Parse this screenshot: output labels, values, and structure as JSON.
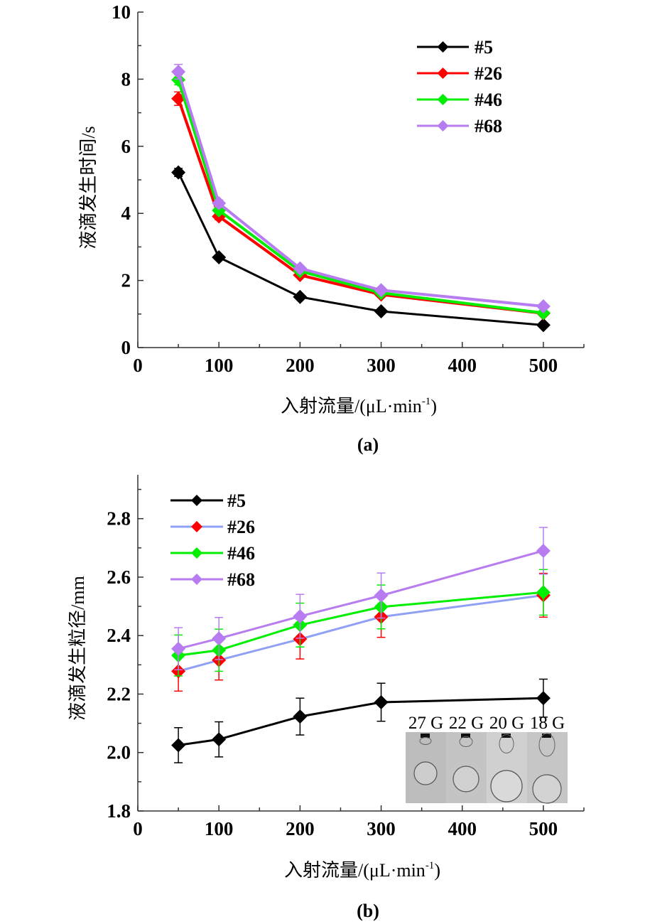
{
  "chart_data": [
    {
      "type": "line",
      "panel_label": "(a)",
      "title": "",
      "xlabel": "入射流量/(μL·min",
      "xlabel_sup": "-1",
      "xlabel_close": ")",
      "ylabel": "液滴发生时间/s",
      "xlim": [
        0,
        550
      ],
      "ylim": [
        0,
        10
      ],
      "xticks": [
        0,
        100,
        200,
        300,
        400,
        500
      ],
      "xtick_labels": [
        "0",
        "100",
        "200",
        "300",
        "400",
        "500"
      ],
      "yticks": [
        0,
        2,
        4,
        6,
        8,
        10
      ],
      "ytick_labels": [
        "0",
        "2",
        "4",
        "6",
        "8",
        "10"
      ],
      "grid": false,
      "legend_position": "top-right",
      "x": [
        50,
        100,
        200,
        300,
        500
      ],
      "series": [
        {
          "name": "#5",
          "line_color": "#000000",
          "marker_color": "#000000",
          "values": [
            5.22,
            2.69,
            1.51,
            1.08,
            0.67
          ],
          "errors": [
            0.12,
            0.05,
            0.04,
            0.03,
            0.03
          ]
        },
        {
          "name": "#26",
          "line_color": "#ff0000",
          "marker_color": "#ff0000",
          "values": [
            7.42,
            3.91,
            2.16,
            1.58,
            1.02
          ],
          "errors": [
            0.2,
            0.1,
            0.06,
            0.04,
            0.04
          ]
        },
        {
          "name": "#46",
          "line_color": "#00ee00",
          "marker_color": "#00ee00",
          "values": [
            7.98,
            4.09,
            2.28,
            1.63,
            1.03
          ],
          "errors": [
            0.15,
            0.08,
            0.05,
            0.04,
            0.04
          ]
        },
        {
          "name": "#68",
          "line_color": "#b77cf0",
          "marker_color": "#b77cf0",
          "values": [
            8.22,
            4.3,
            2.36,
            1.71,
            1.23
          ],
          "errors": [
            0.22,
            0.1,
            0.06,
            0.04,
            0.04
          ]
        }
      ]
    },
    {
      "type": "line",
      "panel_label": "(b)",
      "title": "",
      "xlabel": "入射流量/(μL·min",
      "xlabel_sup": "-1",
      "xlabel_close": ")",
      "ylabel": "液滴发生粒径/mm",
      "xlim": [
        0,
        550
      ],
      "ylim": [
        1.8,
        2.95
      ],
      "xticks": [
        0,
        100,
        200,
        300,
        400,
        500
      ],
      "xtick_labels": [
        "0",
        "100",
        "200",
        "300",
        "400",
        "500"
      ],
      "yticks": [
        1.8,
        2.0,
        2.2,
        2.4,
        2.6,
        2.8
      ],
      "ytick_labels": [
        "1.8",
        "2.0",
        "2.2",
        "2.4",
        "2.6",
        "2.8"
      ],
      "grid": false,
      "legend_position": "top-left",
      "x": [
        50,
        100,
        200,
        300,
        500
      ],
      "series": [
        {
          "name": "#5",
          "line_color": "#000000",
          "marker_color": "#000000",
          "values": [
            2.025,
            2.045,
            2.123,
            2.172,
            2.186
          ],
          "errors": [
            0.06,
            0.06,
            0.063,
            0.065,
            0.065
          ]
        },
        {
          "name": "#26",
          "line_color": "#8fa0f5",
          "marker_color": "#ff0000",
          "values": [
            2.278,
            2.316,
            2.388,
            2.464,
            2.538
          ],
          "errors": [
            0.068,
            0.068,
            0.068,
            0.07,
            0.075
          ]
        },
        {
          "name": "#46",
          "line_color": "#00ee00",
          "marker_color": "#00ee00",
          "values": [
            2.332,
            2.35,
            2.436,
            2.498,
            2.548
          ],
          "errors": [
            0.07,
            0.072,
            0.075,
            0.075,
            0.078
          ]
        },
        {
          "name": "#68",
          "line_color": "#b77cf0",
          "marker_color": "#b77cf0",
          "values": [
            2.355,
            2.39,
            2.466,
            2.537,
            2.69
          ],
          "errors": [
            0.072,
            0.072,
            0.075,
            0.077,
            0.08
          ]
        }
      ],
      "inset": {
        "description": "droplet photographs",
        "labels": [
          "27 G",
          "22 G",
          "20 G",
          "18 G"
        ]
      }
    }
  ]
}
